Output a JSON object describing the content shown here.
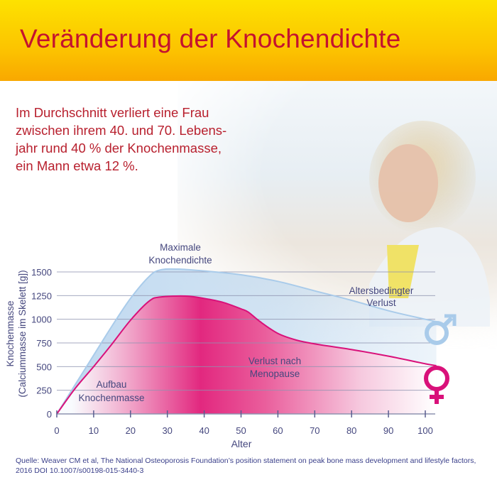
{
  "header": {
    "title": "Veränderung der Knochendichte"
  },
  "intro": {
    "lines": [
      "Im Durchschnitt verliert eine Frau",
      "zwischen ihrem 40. und 70. Lebens-",
      "jahr rund 40 % der Knochenmasse,",
      "ein Mann etwa 12 %."
    ]
  },
  "colors": {
    "title": "#c4122f",
    "female": "#d9117a",
    "male": "#a9cbea",
    "header": "#fcc400",
    "text": "#45477e"
  },
  "chart_data": {
    "type": "area",
    "xlabel": "Alter",
    "ylabel": [
      "Knochenmasse",
      "(Calciummasse im Skelett [g])"
    ],
    "xlim": [
      0,
      100
    ],
    "ylim": [
      0,
      1500
    ],
    "x_ticks": [
      "0",
      "10",
      "20",
      "30",
      "40",
      "50",
      "60",
      "70",
      "80",
      "90",
      "100"
    ],
    "y_ticks": [
      "0",
      "250",
      "500",
      "750",
      "1000",
      "1250",
      "1500"
    ],
    "grid": "horizontal",
    "series": [
      {
        "name": "male",
        "symbol": "male-symbol-icon",
        "x": [
          0,
          5,
          10,
          15,
          20,
          25,
          28,
          33,
          40,
          50,
          60,
          70,
          80,
          90,
          100,
          103
        ],
        "y": [
          0,
          310,
          620,
          930,
          1220,
          1450,
          1520,
          1530,
          1510,
          1470,
          1400,
          1300,
          1200,
          1090,
          1000,
          975
        ]
      },
      {
        "name": "female",
        "symbol": "female-symbol-icon",
        "x": [
          0,
          5,
          10,
          15,
          20,
          25,
          28,
          35,
          40,
          45,
          50,
          52,
          55,
          60,
          65,
          70,
          80,
          90,
          100,
          103
        ],
        "y": [
          0,
          270,
          500,
          740,
          990,
          1190,
          1235,
          1245,
          1220,
          1180,
          1110,
          1075,
          980,
          850,
          780,
          740,
          680,
          610,
          530,
          510
        ]
      }
    ],
    "annotations": [
      {
        "id": "peak",
        "lines": [
          "Maximale",
          "Knochendichte"
        ]
      },
      {
        "id": "age-loss",
        "lines": [
          "Altersbedingter",
          "Verlust"
        ]
      },
      {
        "id": "menopause",
        "lines": [
          "Verlust nach",
          "Menopause"
        ]
      },
      {
        "id": "build",
        "lines": [
          "Aufbau",
          "Knochenmasse"
        ]
      }
    ]
  },
  "source": {
    "text": "Quelle: Weaver CM et al, The National Osteoporosis Foundation’s position statement on peak bone mass development and lifestyle factors, 2016 DOI 10.1007/s00198-015-3440-3"
  }
}
